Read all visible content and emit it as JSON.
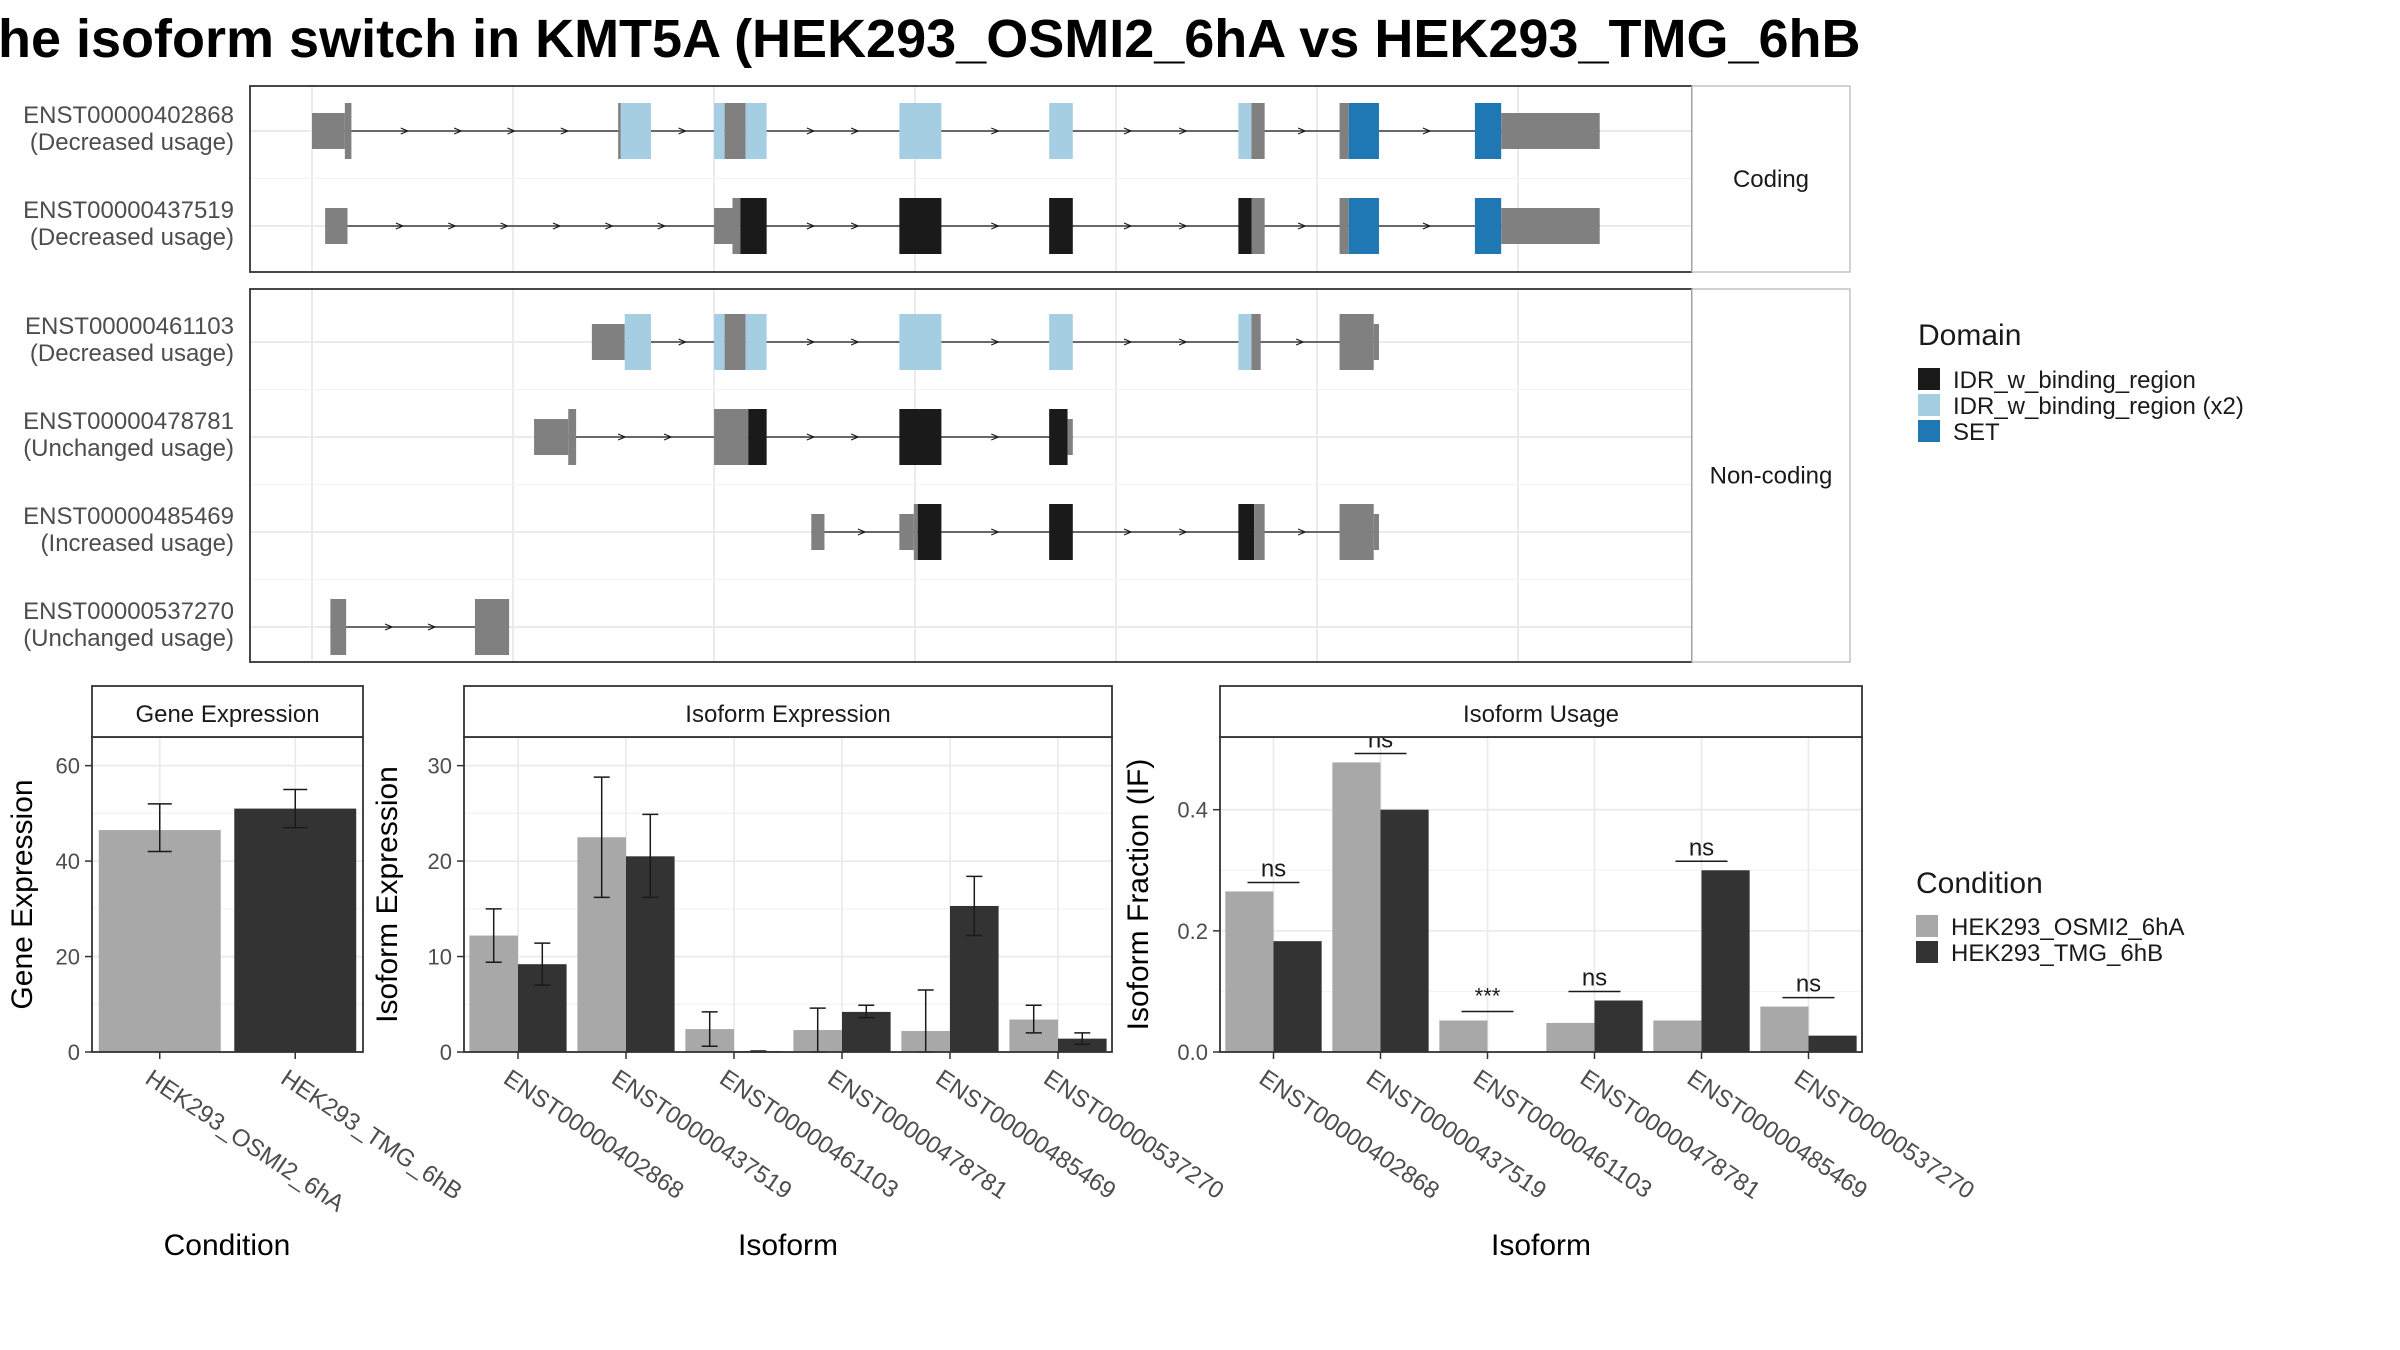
{
  "title": "he isoform switch in KMT5A (HEK293_OSMI2_6hA vs HEK293_TMG_6hB",
  "colors": {
    "exon_gray": "#808080",
    "idr": "#1a1a1a",
    "idr_x2": "#a6cee3",
    "set": "#1f78b4",
    "cond_a": "#a8a8a8",
    "cond_b": "#333333",
    "panel_border": "#333333",
    "strip_fill": "#ffffff",
    "grid": "#ebebeb"
  },
  "legend": {
    "domain_title": "Domain",
    "domain_items": [
      {
        "label": "IDR_w_binding_region",
        "color": "#1a1a1a"
      },
      {
        "label": "IDR_w_binding_region (x2)",
        "color": "#a6cee3"
      },
      {
        "label": "SET",
        "color": "#1f78b4"
      }
    ],
    "condition_title": "Condition",
    "condition_items": [
      {
        "label": "HEK293_OSMI2_6hA",
        "color": "#a8a8a8"
      },
      {
        "label": "HEK293_TMG_6hB",
        "color": "#333333"
      }
    ]
  },
  "structure": {
    "facets": [
      "Coding",
      "Non-coding"
    ],
    "isoforms": [
      {
        "id": "ENST00000402868",
        "usage": "(Decreased usage)",
        "facet": "Coding",
        "exons": [
          {
            "s": 0.0,
            "e": 0.025,
            "t": "utr",
            "d": "gray"
          },
          {
            "s": 0.025,
            "e": 0.03,
            "t": "cds",
            "d": "gray"
          },
          {
            "s": 0.233,
            "e": 0.235,
            "t": "cds",
            "d": "gray"
          },
          {
            "s": 0.235,
            "e": 0.258,
            "t": "cds",
            "d": "idr_x2"
          },
          {
            "s": 0.306,
            "e": 0.314,
            "t": "cds",
            "d": "idr_x2"
          },
          {
            "s": 0.314,
            "e": 0.33,
            "t": "cds",
            "d": "gray"
          },
          {
            "s": 0.33,
            "e": 0.346,
            "t": "cds",
            "d": "idr_x2"
          },
          {
            "s": 0.447,
            "e": 0.479,
            "t": "cds",
            "d": "idr_x2"
          },
          {
            "s": 0.561,
            "e": 0.579,
            "t": "cds",
            "d": "idr_x2"
          },
          {
            "s": 0.705,
            "e": 0.715,
            "t": "cds",
            "d": "idr_x2"
          },
          {
            "s": 0.715,
            "e": 0.725,
            "t": "cds",
            "d": "gray"
          },
          {
            "s": 0.782,
            "e": 0.789,
            "t": "cds",
            "d": "gray"
          },
          {
            "s": 0.789,
            "e": 0.812,
            "t": "cds",
            "d": "set"
          },
          {
            "s": 0.885,
            "e": 0.905,
            "t": "cds",
            "d": "set"
          },
          {
            "s": 0.905,
            "e": 0.98,
            "t": "utr",
            "d": "gray"
          }
        ]
      },
      {
        "id": "ENST00000437519",
        "usage": "(Decreased usage)",
        "facet": "Coding",
        "exons": [
          {
            "s": 0.01,
            "e": 0.027,
            "t": "utr",
            "d": "gray"
          },
          {
            "s": 0.306,
            "e": 0.32,
            "t": "utr",
            "d": "gray"
          },
          {
            "s": 0.32,
            "e": 0.326,
            "t": "cds",
            "d": "gray"
          },
          {
            "s": 0.326,
            "e": 0.346,
            "t": "cds",
            "d": "idr"
          },
          {
            "s": 0.447,
            "e": 0.479,
            "t": "cds",
            "d": "idr"
          },
          {
            "s": 0.561,
            "e": 0.579,
            "t": "cds",
            "d": "idr"
          },
          {
            "s": 0.705,
            "e": 0.715,
            "t": "cds",
            "d": "idr"
          },
          {
            "s": 0.715,
            "e": 0.725,
            "t": "cds",
            "d": "gray"
          },
          {
            "s": 0.782,
            "e": 0.789,
            "t": "cds",
            "d": "gray"
          },
          {
            "s": 0.789,
            "e": 0.812,
            "t": "cds",
            "d": "set"
          },
          {
            "s": 0.885,
            "e": 0.905,
            "t": "cds",
            "d": "set"
          },
          {
            "s": 0.905,
            "e": 0.98,
            "t": "utr",
            "d": "gray"
          }
        ]
      },
      {
        "id": "ENST00000461103",
        "usage": "(Decreased usage)",
        "facet": "Non-coding",
        "exons": [
          {
            "s": 0.213,
            "e": 0.238,
            "t": "utr",
            "d": "gray"
          },
          {
            "s": 0.238,
            "e": 0.258,
            "t": "cds",
            "d": "idr_x2"
          },
          {
            "s": 0.306,
            "e": 0.314,
            "t": "cds",
            "d": "idr_x2"
          },
          {
            "s": 0.314,
            "e": 0.33,
            "t": "cds",
            "d": "gray"
          },
          {
            "s": 0.33,
            "e": 0.346,
            "t": "cds",
            "d": "idr_x2"
          },
          {
            "s": 0.447,
            "e": 0.479,
            "t": "cds",
            "d": "idr_x2"
          },
          {
            "s": 0.561,
            "e": 0.579,
            "t": "cds",
            "d": "idr_x2"
          },
          {
            "s": 0.705,
            "e": 0.715,
            "t": "cds",
            "d": "idr_x2"
          },
          {
            "s": 0.715,
            "e": 0.722,
            "t": "cds",
            "d": "gray"
          },
          {
            "s": 0.782,
            "e": 0.808,
            "t": "cds",
            "d": "gray"
          },
          {
            "s": 0.808,
            "e": 0.812,
            "t": "utr",
            "d": "gray"
          }
        ]
      },
      {
        "id": "ENST00000478781",
        "usage": "(Unchanged usage)",
        "facet": "Non-coding",
        "exons": [
          {
            "s": 0.169,
            "e": 0.195,
            "t": "utr",
            "d": "gray"
          },
          {
            "s": 0.195,
            "e": 0.201,
            "t": "cds",
            "d": "gray"
          },
          {
            "s": 0.306,
            "e": 0.332,
            "t": "cds",
            "d": "gray"
          },
          {
            "s": 0.332,
            "e": 0.346,
            "t": "cds",
            "d": "idr"
          },
          {
            "s": 0.447,
            "e": 0.479,
            "t": "cds",
            "d": "idr"
          },
          {
            "s": 0.561,
            "e": 0.575,
            "t": "cds",
            "d": "idr"
          },
          {
            "s": 0.575,
            "e": 0.579,
            "t": "utr",
            "d": "gray"
          }
        ]
      },
      {
        "id": "ENST00000485469",
        "usage": "(Increased usage)",
        "facet": "Non-coding",
        "exons": [
          {
            "s": 0.38,
            "e": 0.39,
            "t": "utr",
            "d": "gray"
          },
          {
            "s": 0.447,
            "e": 0.458,
            "t": "utr",
            "d": "gray"
          },
          {
            "s": 0.458,
            "e": 0.461,
            "t": "cds",
            "d": "gray"
          },
          {
            "s": 0.461,
            "e": 0.479,
            "t": "cds",
            "d": "idr"
          },
          {
            "s": 0.561,
            "e": 0.579,
            "t": "cds",
            "d": "idr"
          },
          {
            "s": 0.705,
            "e": 0.717,
            "t": "cds",
            "d": "idr"
          },
          {
            "s": 0.717,
            "e": 0.725,
            "t": "cds",
            "d": "gray"
          },
          {
            "s": 0.782,
            "e": 0.808,
            "t": "cds",
            "d": "gray"
          },
          {
            "s": 0.808,
            "e": 0.812,
            "t": "utr",
            "d": "gray"
          }
        ]
      },
      {
        "id": "ENST00000537270",
        "usage": "(Unchanged usage)",
        "facet": "Non-coding",
        "exons": [
          {
            "s": 0.014,
            "e": 0.026,
            "t": "cds",
            "d": "gray"
          },
          {
            "s": 0.124,
            "e": 0.15,
            "t": "cds",
            "d": "gray"
          }
        ]
      }
    ]
  },
  "chart_data": [
    {
      "type": "bar",
      "panel": "Gene Expression",
      "xlabel": "Condition",
      "ylabel": "Gene Expression",
      "ylim": [
        0,
        66
      ],
      "yticks": [
        0,
        20,
        40,
        60
      ],
      "categories": [
        "HEK293_OSMI2_6hA",
        "HEK293_TMG_6hB"
      ],
      "values": [
        46.5,
        51.0
      ],
      "err_low": [
        42.0,
        47.0
      ],
      "err_high": [
        52.0,
        55.0
      ]
    },
    {
      "type": "bar",
      "panel": "Isoform Expression",
      "xlabel": "Isoform",
      "ylabel": "Isoform Expression",
      "ylim": [
        0,
        33
      ],
      "yticks": [
        0,
        10,
        20,
        30
      ],
      "categories": [
        "ENST00000402868",
        "ENST00000437519",
        "ENST00000461103",
        "ENST00000478781",
        "ENST00000485469",
        "ENST00000537270"
      ],
      "series": [
        {
          "name": "HEK293_OSMI2_6hA",
          "values": [
            12.2,
            22.5,
            2.4,
            2.3,
            2.2,
            3.4
          ],
          "err_low": [
            9.4,
            16.2,
            0.6,
            0.0,
            0.0,
            2.0
          ],
          "err_high": [
            15.0,
            28.8,
            4.2,
            4.6,
            6.5,
            4.9
          ]
        },
        {
          "name": "HEK293_TMG_6hB",
          "values": [
            9.2,
            20.5,
            0.1,
            4.2,
            15.3,
            1.4
          ],
          "err_low": [
            7.0,
            16.2,
            0.0,
            3.6,
            12.2,
            0.8
          ],
          "err_high": [
            11.4,
            24.9,
            0.1,
            4.9,
            18.4,
            2.0
          ]
        }
      ]
    },
    {
      "type": "bar",
      "panel": "Isoform Usage",
      "xlabel": "Isoform",
      "ylabel": "Isoform Fraction (IF)",
      "ylim": [
        0,
        0.52
      ],
      "yticks": [
        0.0,
        0.2,
        0.4
      ],
      "categories": [
        "ENST00000402868",
        "ENST00000437519",
        "ENST00000461103",
        "ENST00000478781",
        "ENST00000485469",
        "ENST00000537270"
      ],
      "series": [
        {
          "name": "HEK293_OSMI2_6hA",
          "values": [
            0.265,
            0.478,
            0.052,
            0.048,
            0.052,
            0.075
          ]
        },
        {
          "name": "HEK293_TMG_6hB",
          "values": [
            0.183,
            0.4,
            0.0,
            0.085,
            0.3,
            0.027
          ]
        }
      ],
      "significance": [
        "ns",
        "ns",
        "***",
        "ns",
        "ns",
        "ns"
      ]
    }
  ]
}
